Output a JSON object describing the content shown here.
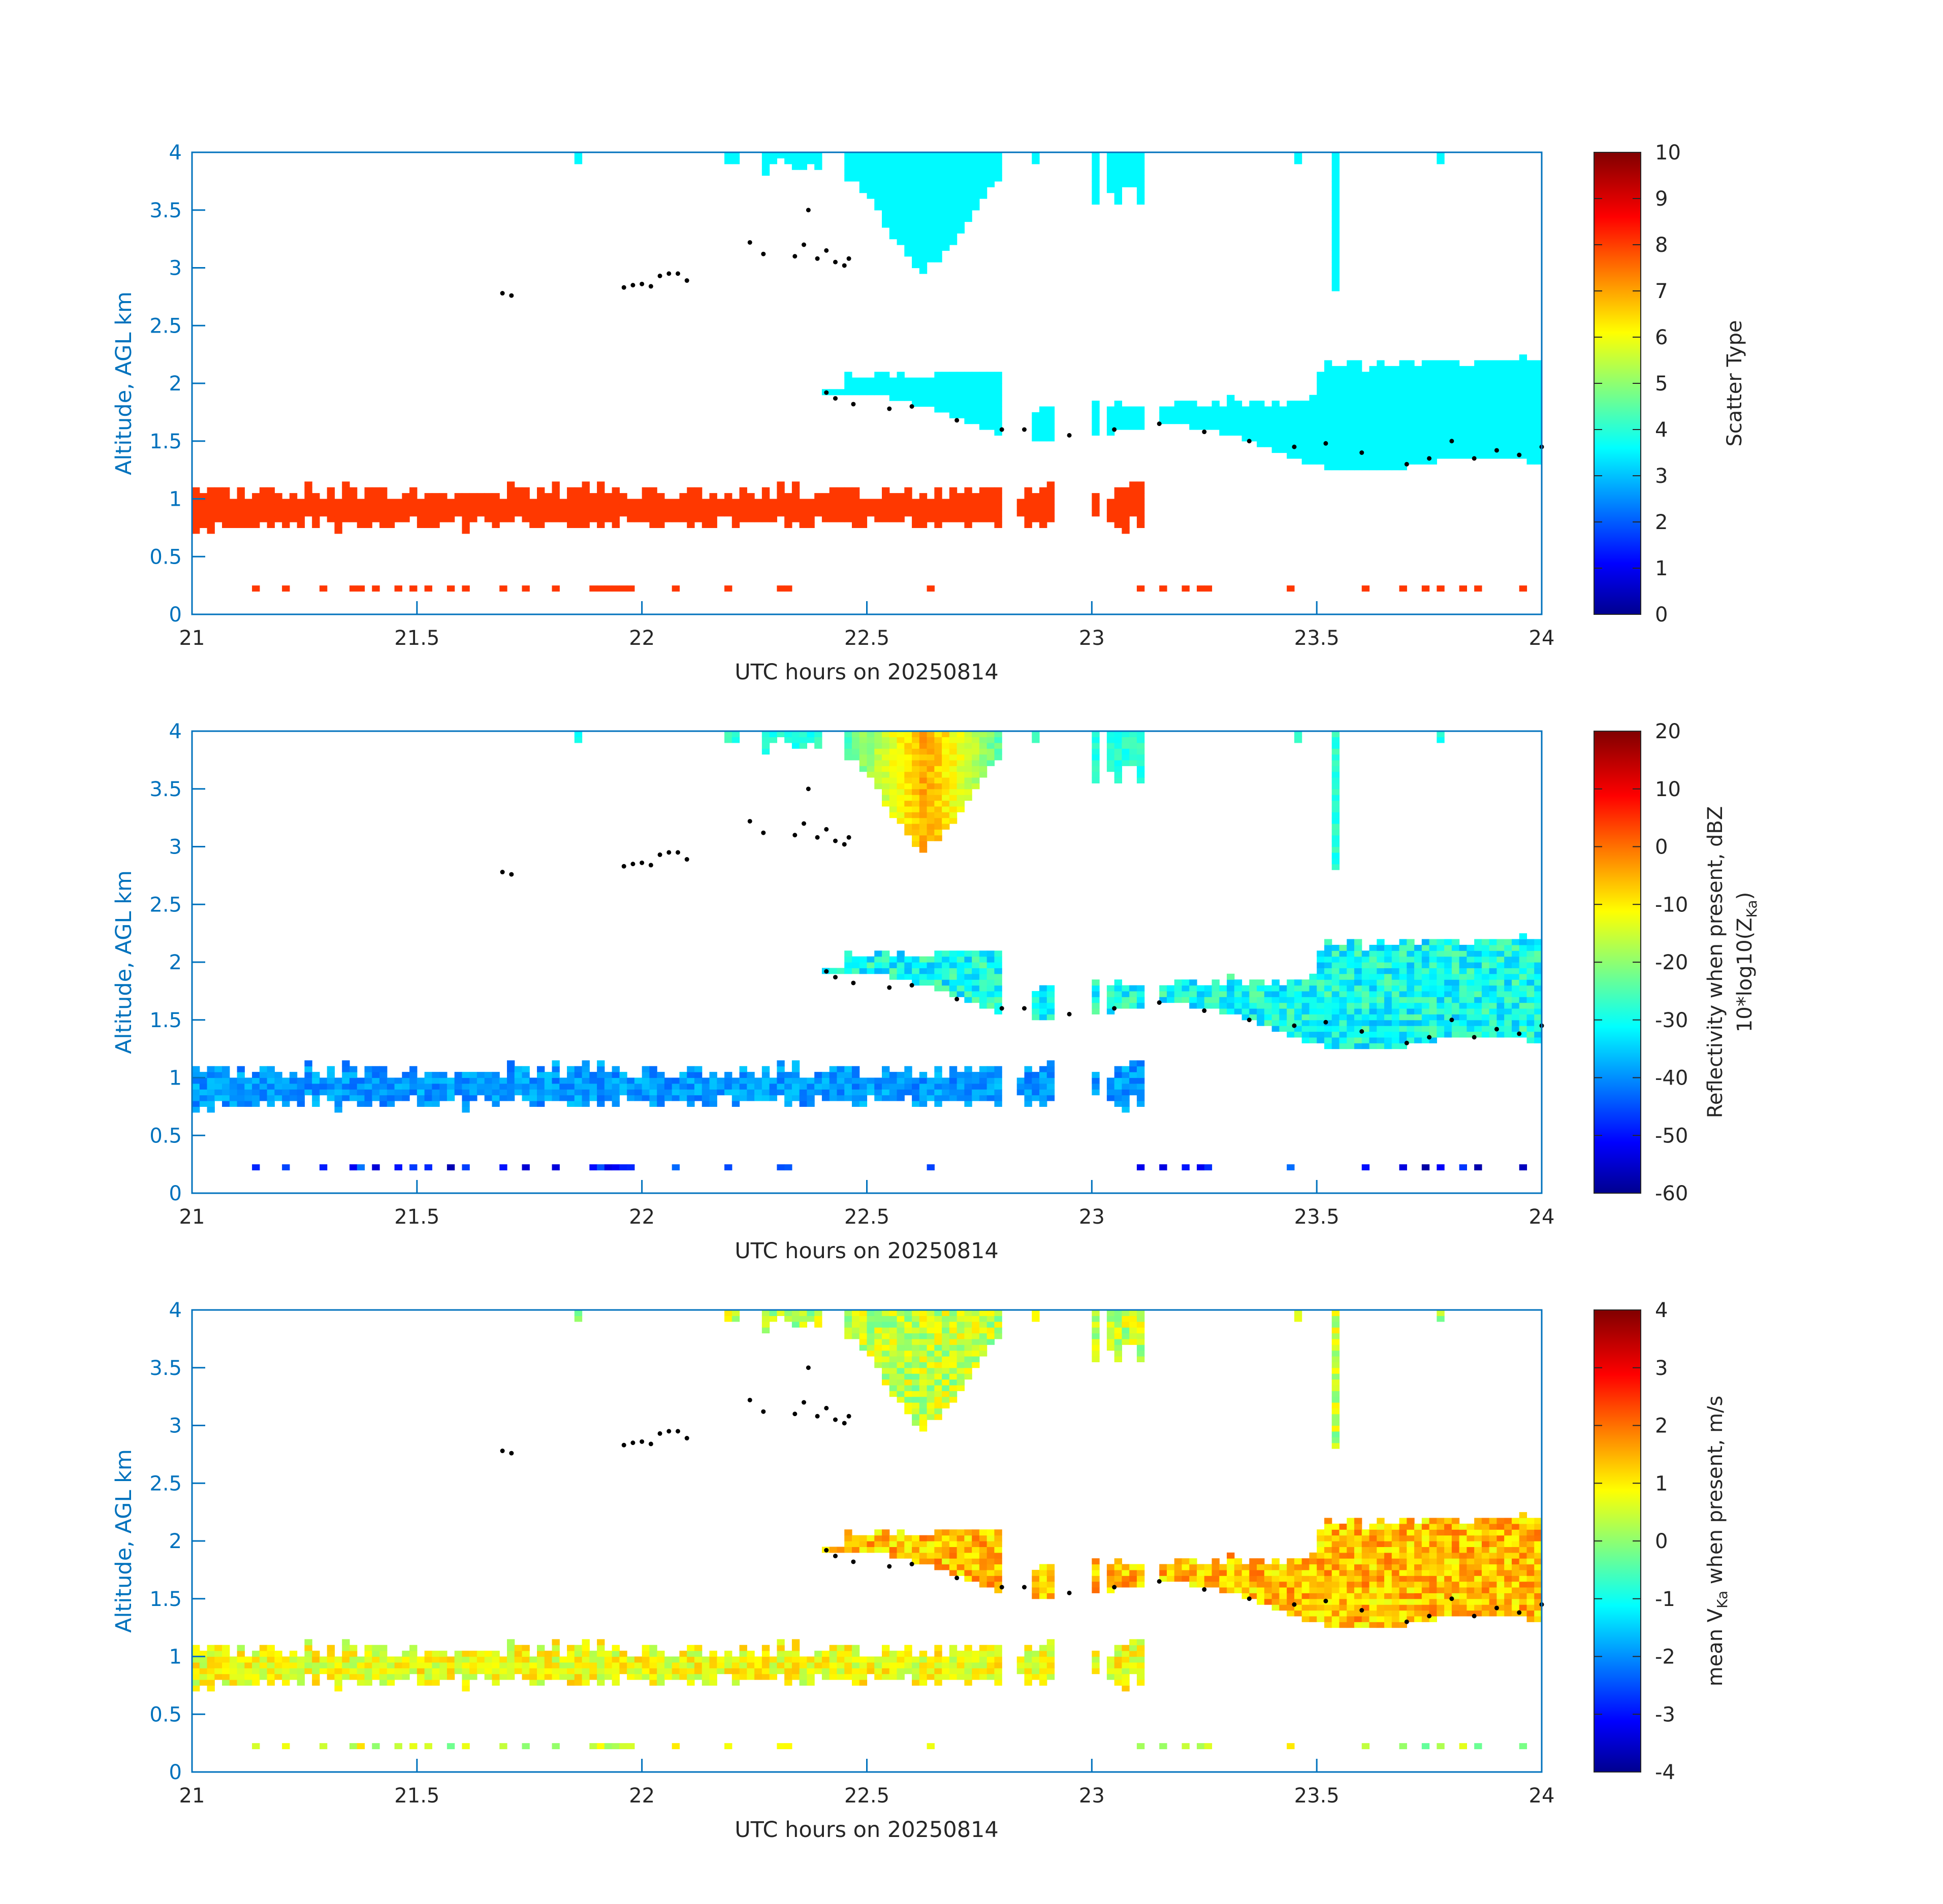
{
  "figure": {
    "background": "#ffffff"
  },
  "colors": {
    "axis": "#0072BD",
    "text": "#262626",
    "label_blue": "#0072BD",
    "base_dots": "#000000"
  },
  "colormap": "jet",
  "chart_data": [
    {
      "type": "heatmap",
      "panel": "scatter-type",
      "xlabel": "UTC hours on 20250814",
      "ylabel": "Altitude, AGL km",
      "xlim": [
        21,
        24
      ],
      "ylim": [
        0,
        4
      ],
      "xticks": [
        "21",
        "21.5",
        "22",
        "22.5",
        "23",
        "23.5",
        "24"
      ],
      "yticks": [
        "0",
        "0.5",
        "1",
        "1.5",
        "2",
        "2.5",
        "3",
        "3.5",
        "4"
      ],
      "colorbar": {
        "label": "Scatter Type",
        "clim": [
          0,
          10
        ],
        "ticks": [
          "0",
          "1",
          "2",
          "3",
          "4",
          "5",
          "6",
          "7",
          "8",
          "9",
          "10"
        ]
      },
      "regions": [
        {
          "name": "low cloud layer",
          "x": [
            21.0,
            23.15
          ],
          "y_bottom": [
            0.65,
            0.8
          ],
          "y_top": [
            1.0,
            1.15
          ],
          "value": 8.2
        },
        {
          "name": "mid layer",
          "x": [
            22.4,
            24.0
          ],
          "y_bottom": [
            1.85,
            1.15
          ],
          "y_top": [
            2.0,
            2.15
          ],
          "value": 3.7
        },
        {
          "name": "upper cloud",
          "x": [
            22.27,
            23.15
          ],
          "y_bottom": [
            3.6,
            2.95
          ],
          "y_top": [
            4.0,
            4.0
          ],
          "value": 3.7
        },
        {
          "name": "surface returns",
          "x": [
            21.05,
            23.98
          ],
          "y": 0.22,
          "value": 8.2
        }
      ]
    },
    {
      "type": "heatmap",
      "panel": "reflectivity",
      "xlabel": "UTC hours on 20250814",
      "ylabel": "Altitude, AGL km",
      "xlim": [
        21,
        24
      ],
      "ylim": [
        0,
        4
      ],
      "xticks": [
        "21",
        "21.5",
        "22",
        "22.5",
        "23",
        "23.5",
        "24"
      ],
      "yticks": [
        "0",
        "0.5",
        "1",
        "1.5",
        "2",
        "2.5",
        "3",
        "3.5",
        "4"
      ],
      "colorbar": {
        "label_line1": "Reflectivity when present, dBZ",
        "label_line2_main": "10*log10(Z",
        "label_line2_sub": "Ka",
        "label_line2_end": ")",
        "clim": [
          -60,
          20
        ],
        "ticks": [
          "-60",
          "-50",
          "-40",
          "-30",
          "-20",
          "-10",
          "0",
          "10",
          "20"
        ]
      },
      "regions": [
        {
          "name": "low cloud layer",
          "x": [
            21.0,
            23.15
          ],
          "value_range": [
            -45,
            -35
          ]
        },
        {
          "name": "mid layer",
          "x": [
            22.45,
            24.0
          ],
          "value_range": [
            -38,
            -22
          ]
        },
        {
          "name": "upper cloud core",
          "x": [
            22.55,
            22.75
          ],
          "value_range": [
            -5,
            0
          ]
        },
        {
          "name": "surface returns",
          "x": [
            21.05,
            23.98
          ],
          "value_range": [
            -60,
            -40
          ]
        }
      ]
    },
    {
      "type": "heatmap",
      "panel": "doppler-velocity",
      "xlabel": "UTC hours on 20250814",
      "ylabel": "Altitude, AGL km",
      "xlim": [
        21,
        24
      ],
      "ylim": [
        0,
        4
      ],
      "xticks": [
        "21",
        "21.5",
        "22",
        "22.5",
        "23",
        "23.5",
        "24"
      ],
      "yticks": [
        "0",
        "0.5",
        "1",
        "1.5",
        "2",
        "2.5",
        "3",
        "3.5",
        "4"
      ],
      "colorbar": {
        "label_pre": "mean V",
        "label_sub": "Ka",
        "label_post": " when present, m/s",
        "clim": [
          -4,
          4
        ],
        "ticks": [
          "-4",
          "-3",
          "-2",
          "-1",
          "0",
          "1",
          "2",
          "3",
          "4"
        ]
      },
      "regions": [
        {
          "name": "low cloud layer",
          "x": [
            21.0,
            23.15
          ],
          "value_range": [
            0.2,
            1.5
          ]
        },
        {
          "name": "mid layer",
          "x": [
            22.45,
            24.0
          ],
          "value_range": [
            0.8,
            2.2
          ]
        },
        {
          "name": "upper cloud",
          "x": [
            22.27,
            23.15
          ],
          "value_range": [
            -0.2,
            1.2
          ]
        }
      ]
    }
  ],
  "cloud_base_dots": {
    "x": [
      21.69,
      21.71,
      21.96,
      21.98,
      22.0,
      22.02,
      22.04,
      22.06,
      22.08,
      22.1,
      22.24,
      22.27,
      22.34,
      22.36,
      22.37,
      22.39,
      22.41,
      22.43,
      22.45,
      22.46,
      22.41,
      22.43,
      22.47,
      22.55,
      22.6,
      22.7,
      22.8,
      22.85,
      22.95,
      23.05,
      23.15,
      23.25,
      23.35,
      23.45,
      23.52,
      23.6,
      23.7,
      23.75,
      23.8,
      23.85,
      23.9,
      23.95,
      24.0
    ],
    "y": [
      2.78,
      2.76,
      2.83,
      2.85,
      2.86,
      2.84,
      2.93,
      2.95,
      2.95,
      2.89,
      3.22,
      3.12,
      3.1,
      3.2,
      3.5,
      3.08,
      3.15,
      3.05,
      3.02,
      3.08,
      1.92,
      1.87,
      1.82,
      1.78,
      1.8,
      1.68,
      1.6,
      1.6,
      1.55,
      1.6,
      1.65,
      1.58,
      1.5,
      1.45,
      1.48,
      1.4,
      1.3,
      1.35,
      1.5,
      1.35,
      1.42,
      1.38,
      1.45
    ]
  }
}
